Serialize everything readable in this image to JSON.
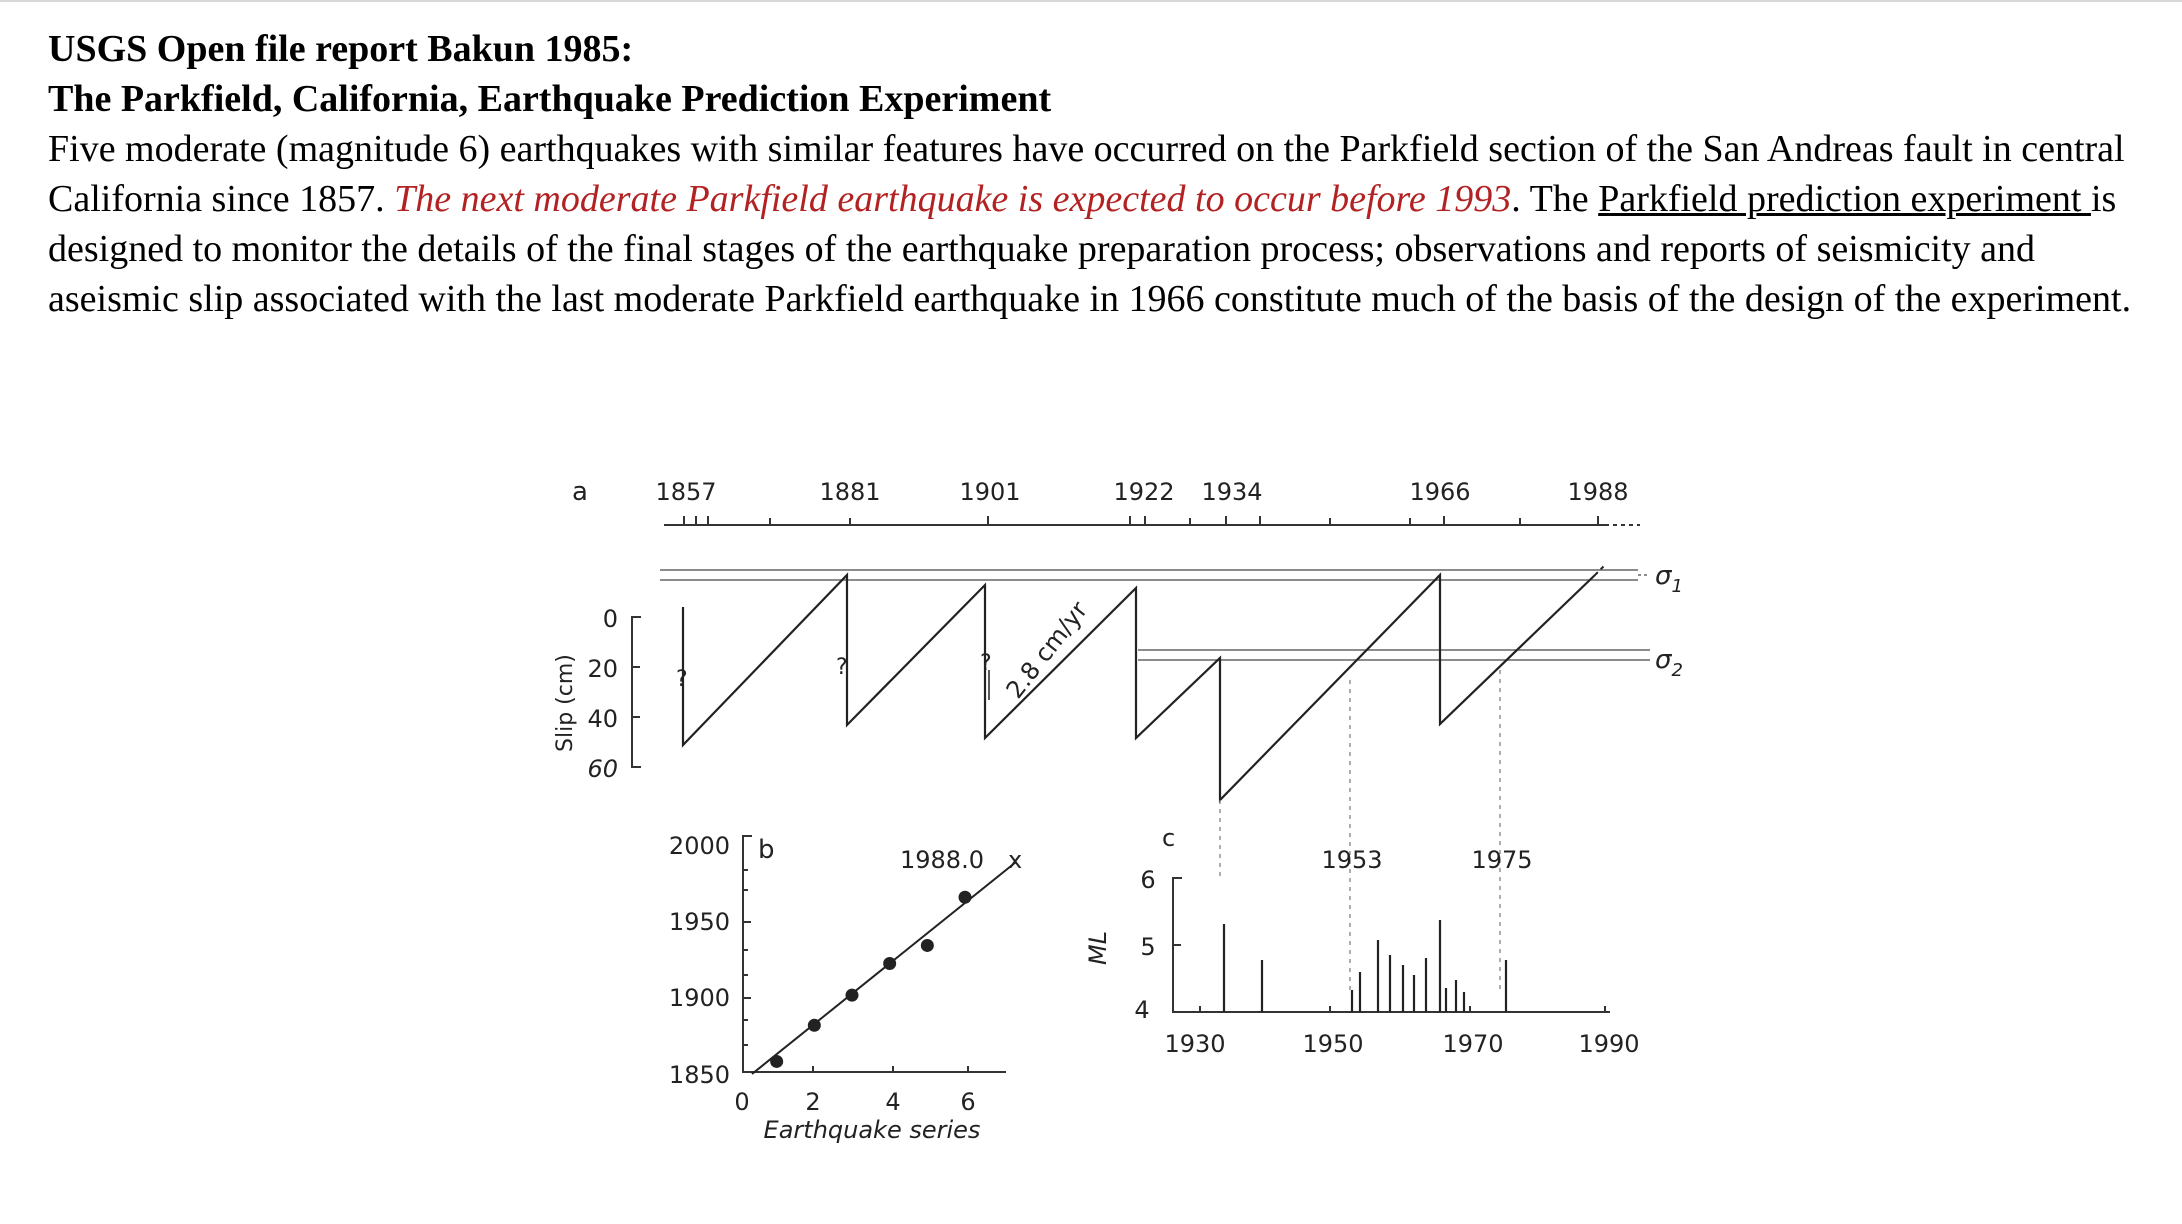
{
  "document": {
    "title_line1": "USGS Open file report Bakun 1985:",
    "title_line2": "The Parkfield, California, Earthquake Prediction Experiment",
    "para_part1": "Five moderate (magnitude 6) earthquakes with similar features have occurred on the Parkfield section of the San Andreas fault in central California since 1857. ",
    "para_red": "The next moderate Parkfield earthquake is expected to occur before 1993",
    "para_part2": ". The ",
    "para_link": "Parkfield prediction experiment ",
    "para_part3": "is designed to monitor the details of the final stages of the earthquake preparation process; observations and reports of seismicity and aseismic slip associated with the last moderate Parkfield earthquake in 1966 constitute much of the basis of the design of the experiment.",
    "colors": {
      "highlight": "#b22222",
      "text": "#000000",
      "figure": "#222222"
    }
  },
  "figure": {
    "panel_a": {
      "label": "a",
      "year_labels": [
        "1857",
        "1881",
        "1901",
        "1922",
        "1934",
        "1966",
        "1988"
      ],
      "ylabel": "Slip (cm)",
      "y_ticks": [
        "0",
        "20",
        "40",
        "60"
      ],
      "question_marks": [
        "?",
        "?",
        "?"
      ],
      "rate_label": "2.8 cm/yr",
      "sigma1": "σ1",
      "sigma2": "σ2",
      "sigma_base": "σ",
      "sigma1_sub": "1",
      "sigma2_sub": "2"
    },
    "panel_b": {
      "label": "b",
      "y_ticks": [
        "2000",
        "1950",
        "1900",
        "1850"
      ],
      "x_ticks": [
        "0",
        "2",
        "4",
        "6"
      ],
      "xlabel": "Earthquake series",
      "prediction_label": "1988.0",
      "points": [
        {
          "x": 1,
          "y": 1857
        },
        {
          "x": 2,
          "y": 1881
        },
        {
          "x": 3,
          "y": 1901
        },
        {
          "x": 4,
          "y": 1922
        },
        {
          "x": 5,
          "y": 1934
        },
        {
          "x": 6,
          "y": 1966
        }
      ]
    },
    "panel_c": {
      "label": "c",
      "ylabel": "ML",
      "y_ticks": [
        "6",
        "5",
        "4"
      ],
      "x_ticks": [
        "1930",
        "1950",
        "1970",
        "1990"
      ],
      "annotations": [
        "1953",
        "1975"
      ]
    }
  }
}
